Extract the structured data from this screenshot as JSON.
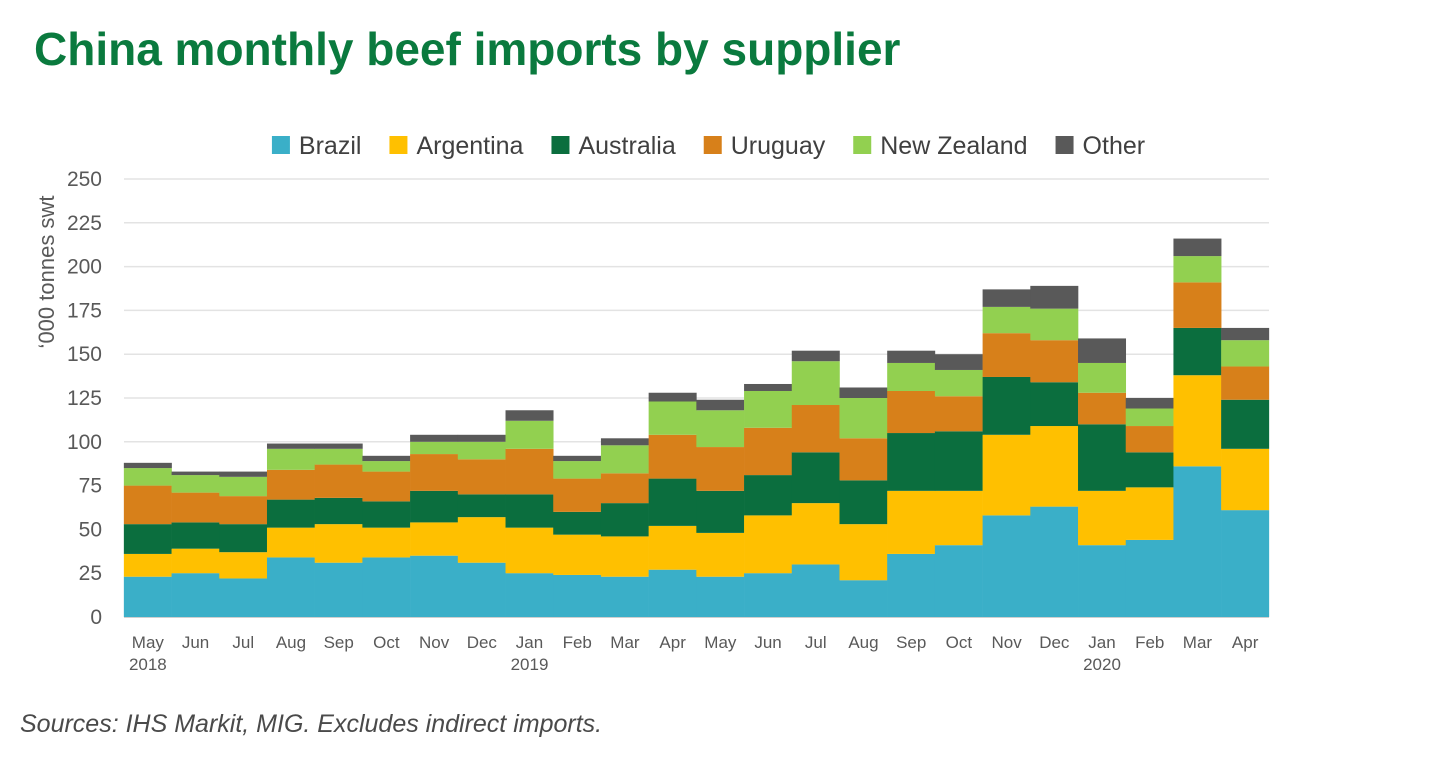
{
  "title": "China monthly beef imports by supplier",
  "source": "Sources: IHS Markit, MIG. Excludes indirect imports.",
  "chart_data": {
    "type": "bar",
    "stacked": true,
    "title": "China monthly beef imports by supplier",
    "xlabel": "",
    "ylabel": "‘000 tonnes swt",
    "ylim": [
      0,
      250
    ],
    "yticks": [
      0,
      25,
      50,
      75,
      100,
      125,
      150,
      175,
      200,
      225,
      250
    ],
    "grid": true,
    "legend_position": "top",
    "categories": [
      "May",
      "Jun",
      "Jul",
      "Aug",
      "Sep",
      "Oct",
      "Nov",
      "Dec",
      "Jan",
      "Feb",
      "Mar",
      "Apr",
      "May",
      "Jun",
      "Jul",
      "Aug",
      "Sep",
      "Oct",
      "Nov",
      "Dec",
      "Jan",
      "Feb",
      "Mar",
      "Apr"
    ],
    "year_labels": [
      {
        "index": 0,
        "label": "2018"
      },
      {
        "index": 8,
        "label": "2019"
      },
      {
        "index": 20,
        "label": "2020"
      }
    ],
    "series": [
      {
        "name": "Brazil",
        "color": "#3aafc8",
        "values": [
          23,
          25,
          22,
          34,
          31,
          34,
          35,
          31,
          25,
          24,
          23,
          27,
          23,
          25,
          30,
          21,
          36,
          41,
          58,
          63,
          41,
          44,
          86,
          61
        ]
      },
      {
        "name": "Argentina",
        "color": "#ffc000",
        "values": [
          13,
          14,
          15,
          17,
          22,
          17,
          19,
          26,
          26,
          23,
          23,
          25,
          25,
          33,
          35,
          32,
          36,
          31,
          46,
          46,
          31,
          30,
          52,
          35
        ]
      },
      {
        "name": "Australia",
        "color": "#0b6e3e",
        "values": [
          17,
          15,
          16,
          16,
          15,
          15,
          18,
          13,
          19,
          13,
          19,
          27,
          24,
          23,
          29,
          25,
          33,
          34,
          33,
          25,
          38,
          20,
          27,
          28
        ]
      },
      {
        "name": "Uruguay",
        "color": "#d7801a",
        "values": [
          22,
          17,
          16,
          17,
          19,
          17,
          21,
          20,
          26,
          19,
          17,
          25,
          25,
          27,
          27,
          24,
          24,
          20,
          25,
          24,
          18,
          15,
          26,
          19
        ]
      },
      {
        "name": "New Zealand",
        "color": "#92d050",
        "values": [
          10,
          10,
          11,
          12,
          9,
          6,
          7,
          10,
          16,
          10,
          16,
          19,
          21,
          21,
          25,
          23,
          16,
          15,
          15,
          18,
          17,
          10,
          15,
          15
        ]
      },
      {
        "name": "Other",
        "color": "#595959",
        "values": [
          3,
          2,
          3,
          3,
          3,
          3,
          4,
          4,
          6,
          3,
          4,
          5,
          6,
          4,
          6,
          6,
          7,
          9,
          10,
          13,
          14,
          6,
          10,
          7
        ]
      }
    ]
  }
}
